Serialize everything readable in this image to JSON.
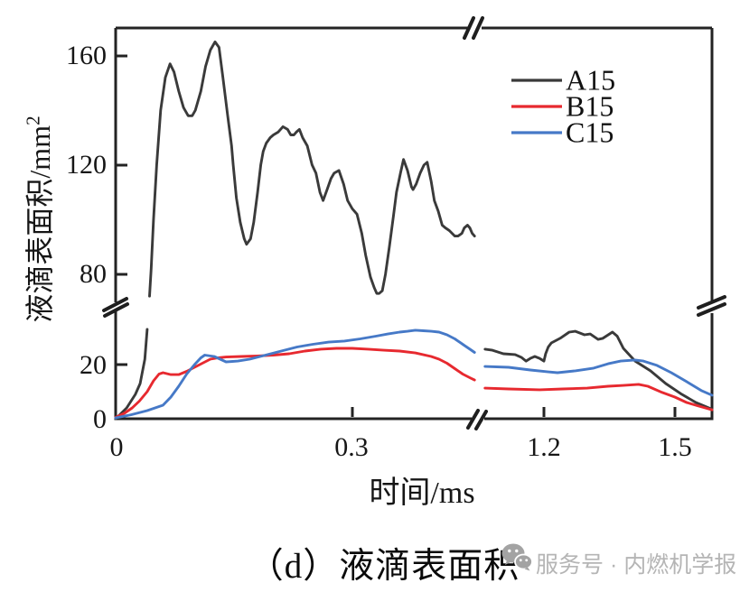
{
  "figure": {
    "caption": "（d）液滴表面积",
    "watermark_text": "服务号 · 内燃机学报"
  },
  "axes": {
    "y": {
      "label_base": "液滴表面积/mm",
      "label_sup": "2",
      "ticks": [
        "0",
        "20",
        "80",
        "120",
        "160"
      ],
      "has_break": true
    },
    "x": {
      "label": "时间/ms",
      "ticks": [
        "0",
        "0.3",
        "1.2",
        "1.5"
      ],
      "has_break": true
    }
  },
  "legend": {
    "position": "top-right",
    "entries": [
      {
        "label": "A15",
        "color": "#3a3a3a"
      },
      {
        "label": "B15",
        "color": "#e7292f"
      },
      {
        "label": "C15",
        "color": "#4679c7"
      }
    ]
  },
  "chart_data": {
    "type": "line",
    "title": "(d) 液滴表面积",
    "xlabel": "时间/ms",
    "ylabel": "液滴表面积/mm²",
    "x_axis": {
      "left_range": [
        0,
        0.455
      ],
      "break_between": [
        0.455,
        1.065
      ],
      "right_range": [
        1.065,
        1.585
      ],
      "ticks": [
        0,
        0.3,
        1.2,
        1.5
      ]
    },
    "y_axis": {
      "low_range": [
        0,
        35
      ],
      "break_between": [
        35,
        66
      ],
      "high_range": [
        66,
        169
      ],
      "ticks": [
        0,
        20,
        80,
        120,
        160
      ],
      "grid": false
    },
    "series": [
      {
        "name": "A15",
        "color": "#3a3a3a",
        "segments": [
          {
            "part": "left-below-break",
            "points": [
              [
                0,
                0
              ],
              [
                0.014,
                4
              ],
              [
                0.025,
                9
              ],
              [
                0.031,
                13
              ],
              [
                0.037,
                22
              ],
              [
                0.04,
                33
              ]
            ]
          },
          {
            "part": "left-above-break",
            "points": [
              [
                0.043,
                72
              ],
              [
                0.045,
                82
              ],
              [
                0.048,
                100
              ],
              [
                0.052,
                120
              ],
              [
                0.057,
                140
              ],
              [
                0.063,
                152
              ],
              [
                0.069,
                157
              ],
              [
                0.074,
                154
              ],
              [
                0.08,
                147
              ],
              [
                0.086,
                141
              ],
              [
                0.092,
                138
              ],
              [
                0.097,
                138
              ],
              [
                0.101,
                140
              ],
              [
                0.108,
                147
              ],
              [
                0.114,
                156
              ],
              [
                0.12,
                162
              ],
              [
                0.126,
                165
              ],
              [
                0.131,
                163
              ],
              [
                0.136,
                152
              ],
              [
                0.142,
                138
              ],
              [
                0.147,
                127
              ],
              [
                0.149,
                120
              ],
              [
                0.153,
                108
              ],
              [
                0.158,
                99
              ],
              [
                0.163,
                93
              ],
              [
                0.166,
                91
              ],
              [
                0.171,
                93
              ],
              [
                0.175,
                99
              ],
              [
                0.18,
                110
              ],
              [
                0.184,
                120
              ],
              [
                0.187,
                125
              ],
              [
                0.191,
                128
              ],
              [
                0.196,
                130
              ],
              [
                0.2,
                131
              ],
              [
                0.206,
                132
              ],
              [
                0.212,
                134
              ],
              [
                0.218,
                133
              ],
              [
                0.222,
                131
              ],
              [
                0.226,
                131
              ],
              [
                0.229,
                132
              ],
              [
                0.233,
                133
              ],
              [
                0.237,
                130
              ],
              [
                0.243,
                127
              ],
              [
                0.249,
                120
              ],
              [
                0.254,
                117
              ],
              [
                0.259,
                110
              ],
              [
                0.263,
                107
              ],
              [
                0.268,
                111
              ],
              [
                0.273,
                115
              ],
              [
                0.277,
                117
              ],
              [
                0.283,
                118
              ],
              [
                0.289,
                113
              ],
              [
                0.294,
                107
              ],
              [
                0.3,
                104
              ],
              [
                0.306,
                102
              ],
              [
                0.312,
                95
              ],
              [
                0.317,
                87
              ],
              [
                0.323,
                79
              ],
              [
                0.328,
                75
              ],
              [
                0.331,
                73
              ],
              [
                0.334,
                73
              ],
              [
                0.338,
                74
              ],
              [
                0.342,
                80
              ],
              [
                0.347,
                90
              ],
              [
                0.352,
                101
              ],
              [
                0.356,
                110
              ],
              [
                0.361,
                117
              ],
              [
                0.365,
                122
              ],
              [
                0.37,
                118
              ],
              [
                0.375,
                112
              ],
              [
                0.377,
                111
              ],
              [
                0.381,
                113
              ],
              [
                0.386,
                117
              ],
              [
                0.391,
                120
              ],
              [
                0.395,
                121
              ],
              [
                0.4,
                114
              ],
              [
                0.404,
                107
              ],
              [
                0.409,
                103
              ],
              [
                0.414,
                98
              ],
              [
                0.418,
                97
              ],
              [
                0.423,
                96
              ],
              [
                0.43,
                94
              ],
              [
                0.434,
                94
              ],
              [
                0.439,
                95
              ],
              [
                0.442,
                97
              ],
              [
                0.446,
                98
              ],
              [
                0.449,
                97
              ],
              [
                0.452,
                95
              ],
              [
                0.455,
                94
              ]
            ]
          },
          {
            "part": "right",
            "points": [
              [
                1.065,
                25.7
              ],
              [
                1.082,
                25.3
              ],
              [
                1.107,
                24
              ],
              [
                1.134,
                23.7
              ],
              [
                1.148,
                22.7
              ],
              [
                1.159,
                21.3
              ],
              [
                1.169,
                22.3
              ],
              [
                1.179,
                23
              ],
              [
                1.19,
                22.3
              ],
              [
                1.2,
                21.3
              ],
              [
                1.204,
                24
              ],
              [
                1.21,
                26.5
              ],
              [
                1.217,
                28
              ],
              [
                1.237,
                29.7
              ],
              [
                1.258,
                32
              ],
              [
                1.272,
                32.3
              ],
              [
                1.293,
                31
              ],
              [
                1.306,
                31.3
              ],
              [
                1.324,
                29.3
              ],
              [
                1.335,
                29.7
              ],
              [
                1.357,
                32
              ],
              [
                1.368,
                30.5
              ],
              [
                1.382,
                26
              ],
              [
                1.409,
                21.3
              ],
              [
                1.444,
                17.7
              ],
              [
                1.479,
                13
              ],
              [
                1.513,
                9.3
              ],
              [
                1.548,
                6
              ],
              [
                1.585,
                3.5
              ]
            ]
          }
        ]
      },
      {
        "name": "B15",
        "color": "#e7292f",
        "segments": [
          {
            "part": "left",
            "points": [
              [
                0,
                0.5
              ],
              [
                0.011,
                2
              ],
              [
                0.021,
                4
              ],
              [
                0.03,
                6.5
              ],
              [
                0.04,
                10
              ],
              [
                0.048,
                14
              ],
              [
                0.055,
                16.5
              ],
              [
                0.06,
                17
              ],
              [
                0.07,
                16.3
              ],
              [
                0.08,
                16.3
              ],
              [
                0.09,
                17.5
              ],
              [
                0.1,
                19
              ],
              [
                0.11,
                20.5
              ],
              [
                0.12,
                22
              ],
              [
                0.13,
                22.5
              ],
              [
                0.14,
                22.8
              ],
              [
                0.16,
                23
              ],
              [
                0.18,
                23.2
              ],
              [
                0.2,
                23.5
              ],
              [
                0.22,
                24
              ],
              [
                0.24,
                25
              ],
              [
                0.26,
                25.7
              ],
              [
                0.28,
                26
              ],
              [
                0.3,
                26
              ],
              [
                0.32,
                25.7
              ],
              [
                0.34,
                25.3
              ],
              [
                0.36,
                25
              ],
              [
                0.38,
                24.3
              ],
              [
                0.4,
                23
              ],
              [
                0.41,
                22
              ],
              [
                0.42,
                20.5
              ],
              [
                0.43,
                18.5
              ],
              [
                0.44,
                16.5
              ],
              [
                0.45,
                15
              ],
              [
                0.455,
                14.3
              ]
            ]
          },
          {
            "part": "right",
            "points": [
              [
                1.065,
                11.3
              ],
              [
                1.119,
                11
              ],
              [
                1.19,
                10.7
              ],
              [
                1.243,
                11
              ],
              [
                1.299,
                11.3
              ],
              [
                1.347,
                12
              ],
              [
                1.382,
                12.3
              ],
              [
                1.417,
                12.7
              ],
              [
                1.438,
                12
              ],
              [
                1.471,
                9.7
              ],
              [
                1.5,
                8
              ],
              [
                1.527,
                6
              ],
              [
                1.554,
                4.7
              ],
              [
                1.585,
                3.3
              ]
            ]
          }
        ]
      },
      {
        "name": "C15",
        "color": "#4679c7",
        "segments": [
          {
            "part": "left",
            "points": [
              [
                0,
                0.3
              ],
              [
                0.02,
                1.5
              ],
              [
                0.04,
                3
              ],
              [
                0.06,
                5
              ],
              [
                0.07,
                8
              ],
              [
                0.08,
                12
              ],
              [
                0.09,
                16.5
              ],
              [
                0.1,
                20
              ],
              [
                0.108,
                22.5
              ],
              [
                0.113,
                23.5
              ],
              [
                0.125,
                23
              ],
              [
                0.14,
                21
              ],
              [
                0.155,
                21.3
              ],
              [
                0.17,
                22
              ],
              [
                0.19,
                23.5
              ],
              [
                0.21,
                25
              ],
              [
                0.23,
                26.5
              ],
              [
                0.25,
                27.5
              ],
              [
                0.27,
                28.3
              ],
              [
                0.29,
                28.7
              ],
              [
                0.31,
                29.5
              ],
              [
                0.33,
                30.5
              ],
              [
                0.345,
                31.3
              ],
              [
                0.36,
                32
              ],
              [
                0.37,
                32.3
              ],
              [
                0.38,
                32.7
              ],
              [
                0.39,
                32.5
              ],
              [
                0.4,
                32.3
              ],
              [
                0.41,
                32
              ],
              [
                0.42,
                31
              ],
              [
                0.43,
                29.5
              ],
              [
                0.44,
                27.5
              ],
              [
                0.45,
                25.5
              ],
              [
                0.455,
                24.5
              ]
            ]
          },
          {
            "part": "right",
            "points": [
              [
                1.065,
                19.3
              ],
              [
                1.119,
                19
              ],
              [
                1.169,
                18
              ],
              [
                1.21,
                17.3
              ],
              [
                1.231,
                17
              ],
              [
                1.272,
                17.7
              ],
              [
                1.314,
                18.7
              ],
              [
                1.347,
                20.3
              ],
              [
                1.376,
                21.3
              ],
              [
                1.409,
                21.7
              ],
              [
                1.428,
                21.3
              ],
              [
                1.459,
                19.7
              ],
              [
                1.492,
                17
              ],
              [
                1.527,
                13.7
              ],
              [
                1.562,
                10.3
              ],
              [
                1.585,
                8.7
              ]
            ]
          }
        ]
      }
    ]
  }
}
